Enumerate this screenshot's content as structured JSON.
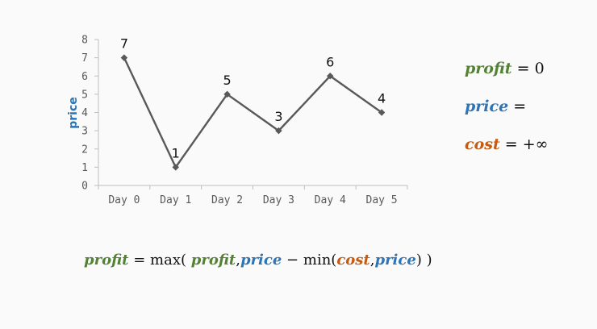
{
  "chart_data": {
    "type": "line",
    "categories": [
      "Day 0",
      "Day 1",
      "Day 2",
      "Day 3",
      "Day 4",
      "Day 5"
    ],
    "values": [
      7,
      1,
      5,
      3,
      6,
      4
    ],
    "ylabel": "price",
    "ylim": [
      0,
      8
    ],
    "yticks": [
      "0",
      "1",
      "2",
      "3",
      "4",
      "5",
      "6",
      "7",
      "8"
    ],
    "data_labels": [
      "7",
      "1",
      "5",
      "3",
      "6",
      "4"
    ],
    "grid": false,
    "line_color": "#595959"
  },
  "vars": {
    "profit": "profit",
    "price": "price",
    "cost": "cost",
    "profit_value": "0",
    "price_value": "",
    "cost_value": "+∞",
    "eq_sign": "=",
    "colors": {
      "profit": "#548235",
      "price": "#2e75b6",
      "cost": "#c55a11"
    }
  },
  "formula": {
    "max_open": "max(",
    "comma": ",",
    "minus": "−",
    "min_open": "min(",
    "close_inner": ")",
    "close_outer": ")"
  }
}
